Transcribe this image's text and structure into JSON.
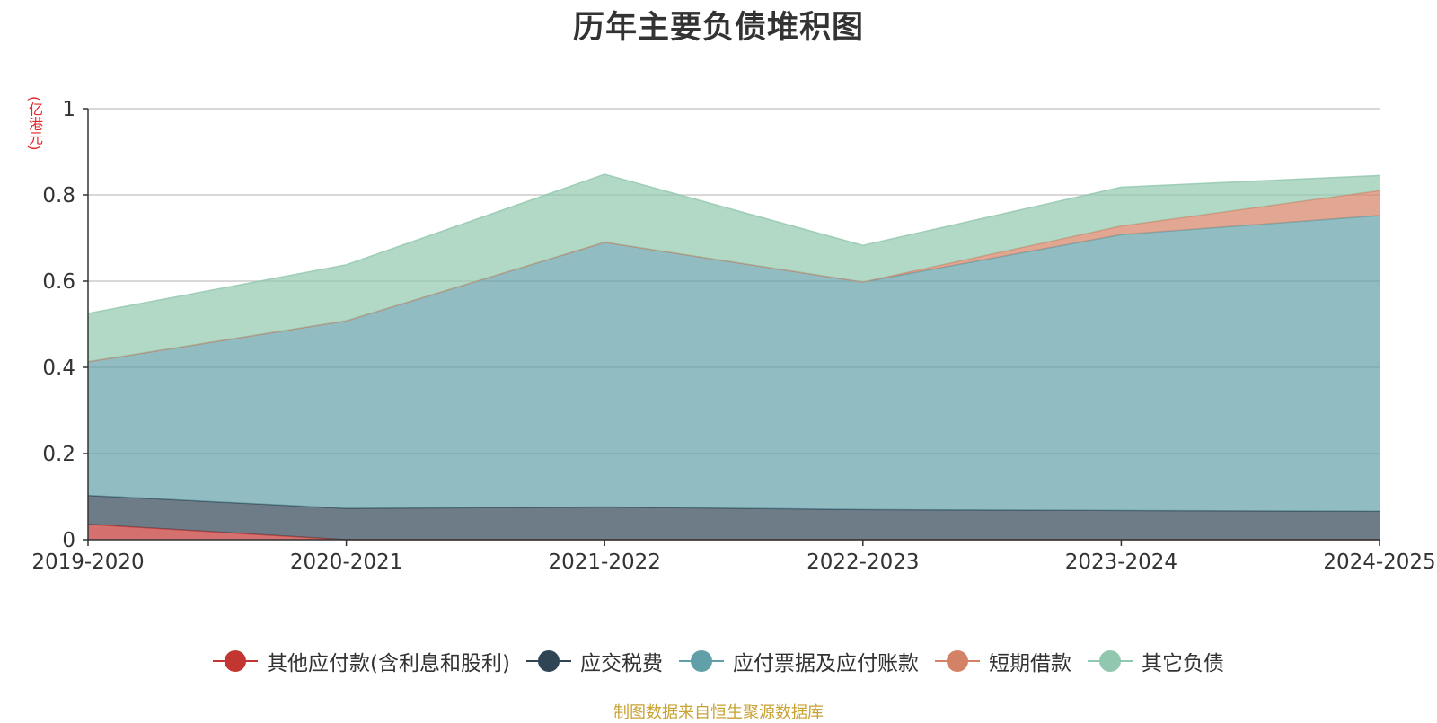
{
  "chart_data": {
    "type": "area",
    "stacked": true,
    "title": "历年主要负债堆积图",
    "unit_label": "(亿港元)",
    "categories": [
      "2019-2020",
      "2020-2021",
      "2021-2022",
      "2022-2023",
      "2023-2024",
      "2024-2025"
    ],
    "ylim": [
      0,
      1
    ],
    "yticks": [
      "0",
      "0.2",
      "0.4",
      "0.6",
      "0.8",
      "1"
    ],
    "grid": true,
    "legend_position": "bottom",
    "series": [
      {
        "name": "其他应付款(含利息和股利)",
        "color": "#c23531",
        "values": [
          0.036,
          0.0,
          0.0,
          0.0,
          0.0,
          0.0
        ]
      },
      {
        "name": "应交税费",
        "color": "#2f4554",
        "values": [
          0.067,
          0.073,
          0.076,
          0.07,
          0.068,
          0.066
        ]
      },
      {
        "name": "应付票据及应付账款",
        "color": "#61a0a8",
        "values": [
          0.31,
          0.435,
          0.614,
          0.528,
          0.64,
          0.686
        ]
      },
      {
        "name": "短期借款",
        "color": "#d48265",
        "values": [
          0.0,
          0.0,
          0.0,
          0.0,
          0.02,
          0.058
        ]
      },
      {
        "name": "其它负债",
        "color": "#91c7ae",
        "values": [
          0.112,
          0.13,
          0.158,
          0.085,
          0.09,
          0.035
        ]
      }
    ],
    "source": "制图数据来自恒生聚源数据库"
  }
}
